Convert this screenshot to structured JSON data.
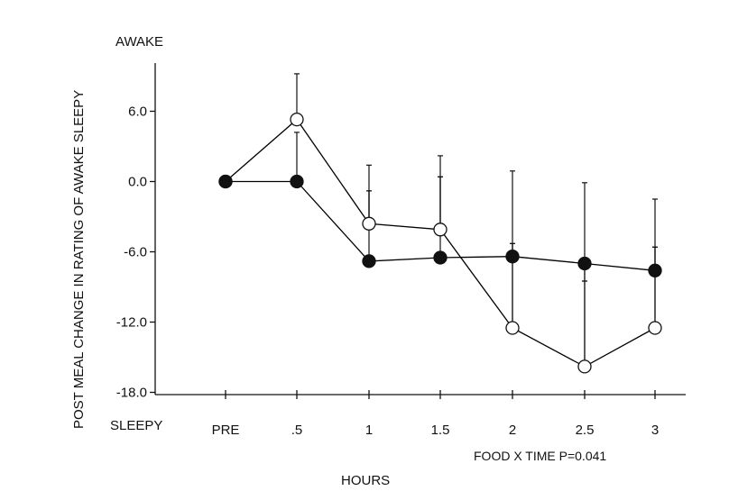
{
  "chart_data": {
    "type": "line",
    "ylabel": "POST MEAL CHANGE IN RATING OF AWAKE SLEEPY",
    "xlabel": "HOURS",
    "y_top_label": "AWAKE",
    "y_bottom_label": "SLEEPY",
    "annotation": "FOOD X TIME P=0.041",
    "categories": [
      "PRE",
      ".5",
      "1",
      "1.5",
      "2",
      "2.5",
      "3"
    ],
    "ylim": [
      -18,
      10
    ],
    "yticks": [
      6,
      0,
      -6,
      -12,
      -18
    ],
    "ytick_labels": [
      "6.0",
      "0.0",
      "-6.0",
      "-12.0",
      "-18.0"
    ],
    "grid": false,
    "series": [
      {
        "marker": "open-circle",
        "color": "#000000",
        "values": [
          0,
          5.3,
          -3.6,
          -4.1,
          -12.5,
          -15.8,
          -12.5
        ],
        "error_bars": [
          null,
          {
            "upper": 9.2
          },
          {
            "upper": 1.4,
            "lower": -0.8
          },
          {
            "upper": 2.2,
            "lower": 0.4
          },
          {
            "upper": 0.9,
            "lower": -5.3
          },
          {
            "upper": -0.1,
            "lower": -8.5
          },
          {
            "upper": -1.5,
            "lower": -5.6
          }
        ]
      },
      {
        "marker": "filled-circle",
        "color": "#000000",
        "values": [
          0,
          0,
          -6.8,
          -6.5,
          -6.4,
          -7.0,
          -7.6
        ],
        "error_bars": [
          null,
          {
            "upper": 4.2
          },
          {
            "lower": -0.8
          },
          {
            "lower": 0.4
          },
          {
            "lower": -5.3
          },
          {
            "lower": -8.5
          },
          {
            "lower": -5.6
          }
        ]
      }
    ]
  }
}
